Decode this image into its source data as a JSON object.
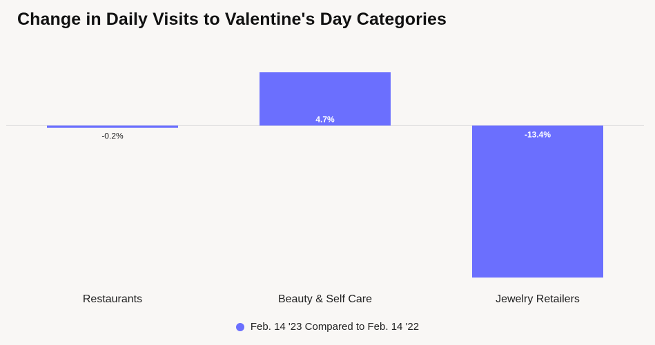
{
  "chart_data": {
    "type": "bar",
    "title": "Change in Daily Visits to Valentine's Day Categories",
    "categories": [
      "Restaurants",
      "Beauty & Self Care",
      "Jewelry Retailers"
    ],
    "series": [
      {
        "name": "Feb. 14 '23 Compared to Feb. 14 '22",
        "values": [
          -0.2,
          4.7,
          -13.4
        ],
        "labels": [
          "-0.2%",
          "4.7%",
          "-13.4%"
        ],
        "color": "#6b6ffe"
      }
    ],
    "xlabel": "",
    "ylabel": "",
    "ylim": [
      -13.4,
      4.7
    ],
    "grid": false,
    "legend_position": "bottom"
  },
  "colors": {
    "background": "#f9f7f5",
    "bar": "#6b6ffe",
    "zero_line": "#dddddd"
  }
}
